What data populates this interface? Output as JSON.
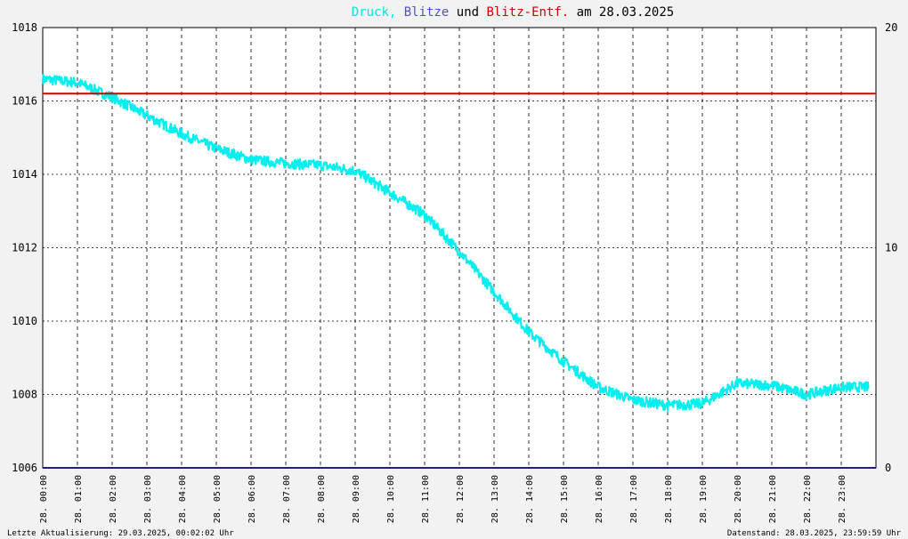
{
  "chart_data": {
    "type": "line",
    "title_parts": [
      {
        "text": "Druck,",
        "color": "#00e5e5"
      },
      {
        "text": "Blitze",
        "color": "#5050c8"
      },
      {
        "text": "und",
        "color": "#000000"
      },
      {
        "text": "Blitz-Entf.",
        "color": "#d00000"
      },
      {
        "text": "am 28.03.2025",
        "color": "#000000"
      }
    ],
    "left_axis": {
      "ylim": [
        1006,
        1018
      ],
      "ticks": [
        "1006",
        "1008",
        "1010",
        "1012",
        "1014",
        "1016",
        "1018"
      ]
    },
    "right_axis": {
      "ylim": [
        0,
        20
      ],
      "ticks": [
        {
          "value": 0,
          "label": "0",
          "color": "#000000"
        },
        {
          "value": 10,
          "label": "10",
          "color": "#d00000"
        },
        {
          "value": 20,
          "label": "20",
          "color": "#000000"
        }
      ]
    },
    "x_hours": [
      0,
      24
    ],
    "x_ticks": [
      "28. 00:00",
      "28. 01:00",
      "28. 02:00",
      "28. 03:00",
      "28. 04:00",
      "28. 05:00",
      "28. 06:00",
      "28. 07:00",
      "28. 08:00",
      "28. 09:00",
      "28. 10:00",
      "28. 11:00",
      "28. 12:00",
      "28. 13:00",
      "28. 14:00",
      "28. 15:00",
      "28. 16:00",
      "28. 17:00",
      "28. 18:00",
      "28. 19:00",
      "28. 20:00",
      "28. 21:00",
      "28. 22:00",
      "28. 23:00"
    ],
    "grid": true,
    "series": [
      {
        "name": "Druck",
        "color": "#00f0f0",
        "axis": "left",
        "x": [
          0,
          1,
          2,
          3,
          4,
          5,
          6,
          7,
          8,
          9,
          10,
          11,
          12,
          13,
          14,
          15,
          16,
          17,
          18,
          19,
          20,
          21,
          22,
          23,
          23.8
        ],
        "y": [
          1016.6,
          1016.5,
          1016.1,
          1015.6,
          1015.1,
          1014.7,
          1014.4,
          1014.3,
          1014.25,
          1014.1,
          1013.5,
          1012.9,
          1011.9,
          1010.8,
          1009.7,
          1008.9,
          1008.2,
          1007.85,
          1007.7,
          1007.75,
          1008.3,
          1008.25,
          1008.0,
          1008.2,
          1008.2
        ]
      },
      {
        "name": "Blitz-Entf.",
        "color": "#d00000",
        "axis": "right",
        "x": [
          0,
          24
        ],
        "y": [
          17,
          17
        ]
      },
      {
        "name": "Blitze",
        "color": "#202080",
        "axis": "right",
        "x": [
          0,
          24
        ],
        "y": [
          0,
          0
        ]
      }
    ]
  },
  "footer": {
    "left": "Letzte Aktualisierung: 29.03.2025, 00:02:02 Uhr",
    "right": "Datenstand: 28.03.2025, 23:59:59 Uhr"
  }
}
